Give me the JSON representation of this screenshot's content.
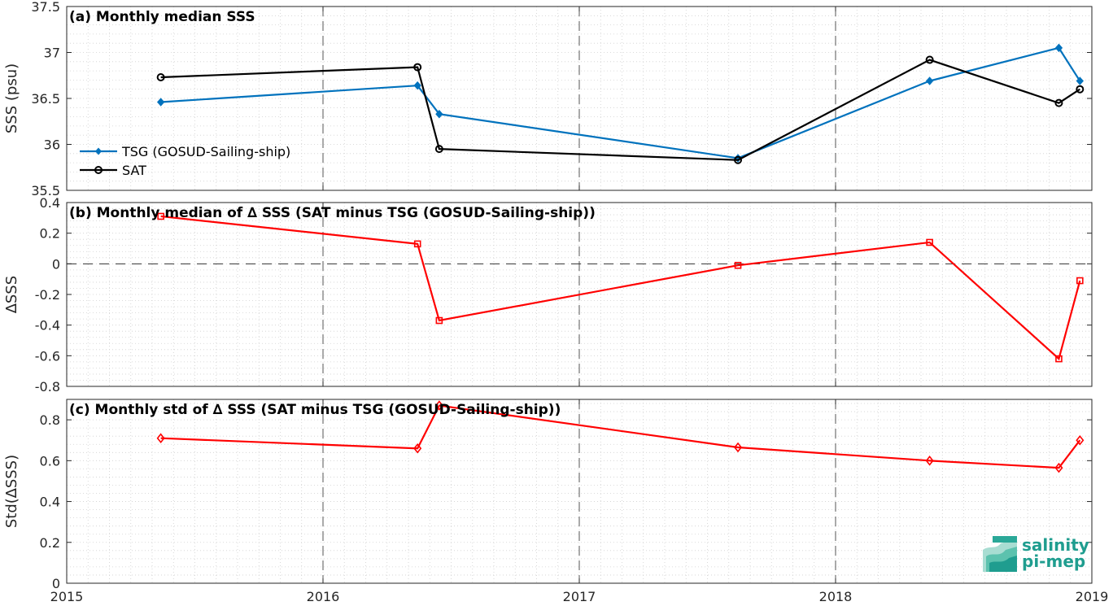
{
  "chart_data": [
    {
      "type": "line",
      "title": "(a) Monthly median SSS",
      "xlabel": "",
      "ylabel": "SSS (psu)",
      "xlim": [
        "2015-01-01",
        "2019-01-01"
      ],
      "ylim": [
        35.5,
        37.5
      ],
      "x_ticks": [
        "2015",
        "2016",
        "2017",
        "2018",
        "2019"
      ],
      "y_ticks": [
        "35.5",
        "36",
        "36.5",
        "37",
        "37.5"
      ],
      "grid": true,
      "legend": "left",
      "series": [
        {
          "name": "TSG (GOSUD-Sailing-ship)",
          "color": "#0072bd",
          "marker": "filled-diamond",
          "x": [
            "2015-05-15",
            "2016-05-15",
            "2016-06-15",
            "2017-08-15",
            "2018-05-15",
            "2018-11-15",
            "2018-12-15"
          ],
          "values": [
            36.46,
            36.64,
            36.33,
            35.85,
            36.69,
            37.05,
            36.69
          ]
        },
        {
          "name": "SAT",
          "color": "#000000",
          "marker": "open-circle",
          "x": [
            "2015-05-15",
            "2016-05-15",
            "2016-06-15",
            "2017-08-15",
            "2018-05-15",
            "2018-11-15",
            "2018-12-15"
          ],
          "values": [
            36.73,
            36.84,
            35.95,
            35.83,
            36.92,
            36.45,
            36.6
          ]
        }
      ]
    },
    {
      "type": "line",
      "title": "(b) Monthly median of ∆ SSS (SAT minus TSG (GOSUD-Sailing-ship))",
      "xlabel": "",
      "ylabel": "∆SSS",
      "xlim": [
        "2015-01-01",
        "2019-01-01"
      ],
      "ylim": [
        -0.8,
        0.4
      ],
      "x_ticks": [
        "2015",
        "2016",
        "2017",
        "2018",
        "2019"
      ],
      "y_ticks": [
        "-0.8",
        "-0.6",
        "-0.4",
        "-0.2",
        "0",
        "0.2",
        "0.4"
      ],
      "grid": true,
      "zero_line": true,
      "series": [
        {
          "color": "#ff0000",
          "marker": "open-square",
          "x": [
            "2015-05-15",
            "2016-05-15",
            "2016-06-15",
            "2017-08-15",
            "2018-05-15",
            "2018-11-15",
            "2018-12-15"
          ],
          "values": [
            0.31,
            0.13,
            -0.37,
            -0.01,
            0.14,
            -0.62,
            -0.11
          ]
        }
      ]
    },
    {
      "type": "line",
      "title": "(c) Monthly std of ∆ SSS (SAT minus TSG (GOSUD-Sailing-ship))",
      "xlabel": "",
      "ylabel": "Std(∆SSS)",
      "xlim": [
        "2015-01-01",
        "2019-01-01"
      ],
      "ylim": [
        0,
        0.9
      ],
      "x_ticks": [
        "2015",
        "2016",
        "2017",
        "2018",
        "2019"
      ],
      "y_ticks": [
        "0",
        "0.2",
        "0.4",
        "0.6",
        "0.8"
      ],
      "grid": true,
      "series": [
        {
          "color": "#ff0000",
          "marker": "open-diamond",
          "x": [
            "2015-05-15",
            "2016-05-15",
            "2016-06-15",
            "2017-08-15",
            "2018-05-15",
            "2018-11-15",
            "2018-12-15"
          ],
          "values": [
            0.71,
            0.66,
            0.87,
            0.665,
            0.6,
            0.565,
            0.7
          ]
        }
      ]
    }
  ],
  "logo": {
    "line1": "salinity",
    "line2": "pi-mep",
    "color": "#1f9d8f"
  }
}
